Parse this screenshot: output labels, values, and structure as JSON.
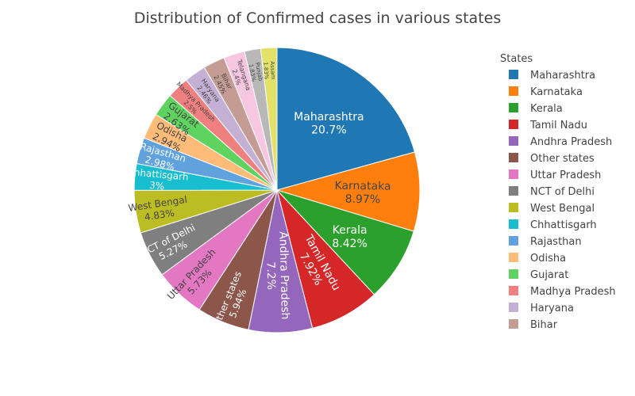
{
  "chart_data": {
    "type": "pie",
    "title": "Distribution of Confirmed cases in various states",
    "legend_title": "States",
    "legend_position": "right",
    "categories": [
      "Maharashtra",
      "Karnataka",
      "Kerala",
      "Tamil Nadu",
      "Andhra Pradesh",
      "Other states",
      "Uttar Pradesh",
      "NCT of Delhi",
      "West Bengal",
      "Chhattisgarh",
      "Rajasthan",
      "Odisha",
      "Gujarat",
      "Madhya Pradesh",
      "Haryana",
      "Bihar",
      "Telangana",
      "Punjab",
      "Assam"
    ],
    "values": [
      20.7,
      8.97,
      8.42,
      7.92,
      7.2,
      5.94,
      5.73,
      5.27,
      4.83,
      3,
      2.98,
      2.94,
      2.63,
      2.5,
      2.46,
      2.45,
      2.4,
      1.83,
      1.83
    ],
    "labels": [
      "20.7%",
      "8.97%",
      "8.42%",
      "7.92%",
      "7.2%",
      "5.94%",
      "5.73%",
      "5.27%",
      "4.83%",
      "3%",
      "2.98%",
      "2.94%",
      "2.63%",
      "2.5%",
      "2.46%",
      "2.45%",
      "2.4%",
      "1.83%",
      "1.83%"
    ],
    "colors": [
      "#1f77b4",
      "#ff7f0e",
      "#2ca02c",
      "#d62728",
      "#9467bd",
      "#8c564b",
      "#e377c2",
      "#7f7f7f",
      "#bcbd22",
      "#17becf",
      "#5fa2dd",
      "#ffbb78",
      "#5fd35f",
      "#f08080",
      "#c5b0d5",
      "#c49c94",
      "#f7c6e0",
      "#b8b8b8",
      "#e2e26a"
    ],
    "legend_entries": [
      "Maharashtra",
      "Karnataka",
      "Kerala",
      "Tamil Nadu",
      "Andhra Pradesh",
      "Other states",
      "Uttar Pradesh",
      "NCT of Delhi",
      "West Bengal",
      "Chhattisgarh",
      "Rajasthan",
      "Odisha",
      "Gujarat",
      "Madhya Pradesh",
      "Haryana",
      "Bihar"
    ]
  }
}
